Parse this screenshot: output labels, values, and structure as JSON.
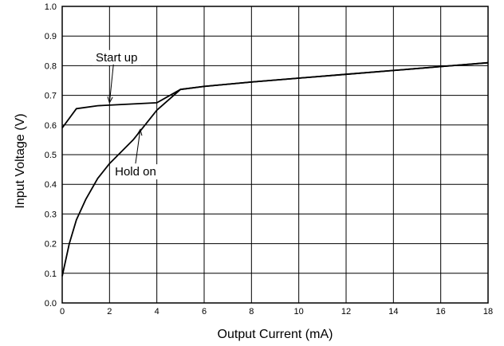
{
  "chart_data": {
    "type": "line",
    "title": "",
    "xlabel": "Output Current (mA)",
    "ylabel": "Input Voltage (V)",
    "xlim": [
      0,
      18
    ],
    "ylim": [
      0.0,
      1.0
    ],
    "grid": true,
    "x_ticks": [
      {
        "value": 0,
        "label": "0"
      },
      {
        "value": 2,
        "label": "2"
      },
      {
        "value": 4,
        "label": "4"
      },
      {
        "value": 6,
        "label": "6"
      },
      {
        "value": 8,
        "label": "8"
      },
      {
        "value": 10,
        "label": "10"
      },
      {
        "value": 12,
        "label": "12"
      },
      {
        "value": 14,
        "label": "14"
      },
      {
        "value": 16,
        "label": "16"
      },
      {
        "value": 18,
        "label": "18"
      }
    ],
    "y_ticks": [
      {
        "value": 0.0,
        "label": "0.0"
      },
      {
        "value": 0.1,
        "label": "0.1"
      },
      {
        "value": 0.2,
        "label": "0.2"
      },
      {
        "value": 0.3,
        "label": "0.3"
      },
      {
        "value": 0.4,
        "label": "0.4"
      },
      {
        "value": 0.5,
        "label": "0.5"
      },
      {
        "value": 0.6,
        "label": "0.6"
      },
      {
        "value": 0.7,
        "label": "0.7"
      },
      {
        "value": 0.8,
        "label": "0.8"
      },
      {
        "value": 0.9,
        "label": "0.9"
      },
      {
        "value": 1.0,
        "label": "1.0"
      }
    ],
    "series": [
      {
        "x": [
          0,
          0.6,
          1.5,
          4.0,
          5.0,
          6.0,
          8.0,
          10.0,
          12.0,
          14.0,
          16.0,
          18.0
        ],
        "y": [
          0.59,
          0.655,
          0.665,
          0.675,
          0.72,
          0.73,
          0.745,
          0.758,
          0.771,
          0.784,
          0.797,
          0.81
        ]
      },
      {
        "x": [
          0,
          0.3,
          0.6,
          1.0,
          1.5,
          2.0,
          3.0,
          4.0,
          5.0,
          6.0,
          8.0,
          10.0,
          12.0,
          14.0,
          16.0,
          18.0
        ],
        "y": [
          0.09,
          0.2,
          0.28,
          0.35,
          0.42,
          0.47,
          0.55,
          0.65,
          0.72,
          0.73,
          0.745,
          0.758,
          0.771,
          0.784,
          0.797,
          0.81
        ]
      }
    ],
    "annotations": [
      {
        "text": "Start up",
        "x": 2.3,
        "y": 0.815,
        "arrow_to": [
          2.0,
          0.675
        ]
      },
      {
        "text": "Hold on",
        "x": 3.1,
        "y": 0.43,
        "arrow_to": [
          3.3,
          0.585
        ]
      }
    ]
  }
}
